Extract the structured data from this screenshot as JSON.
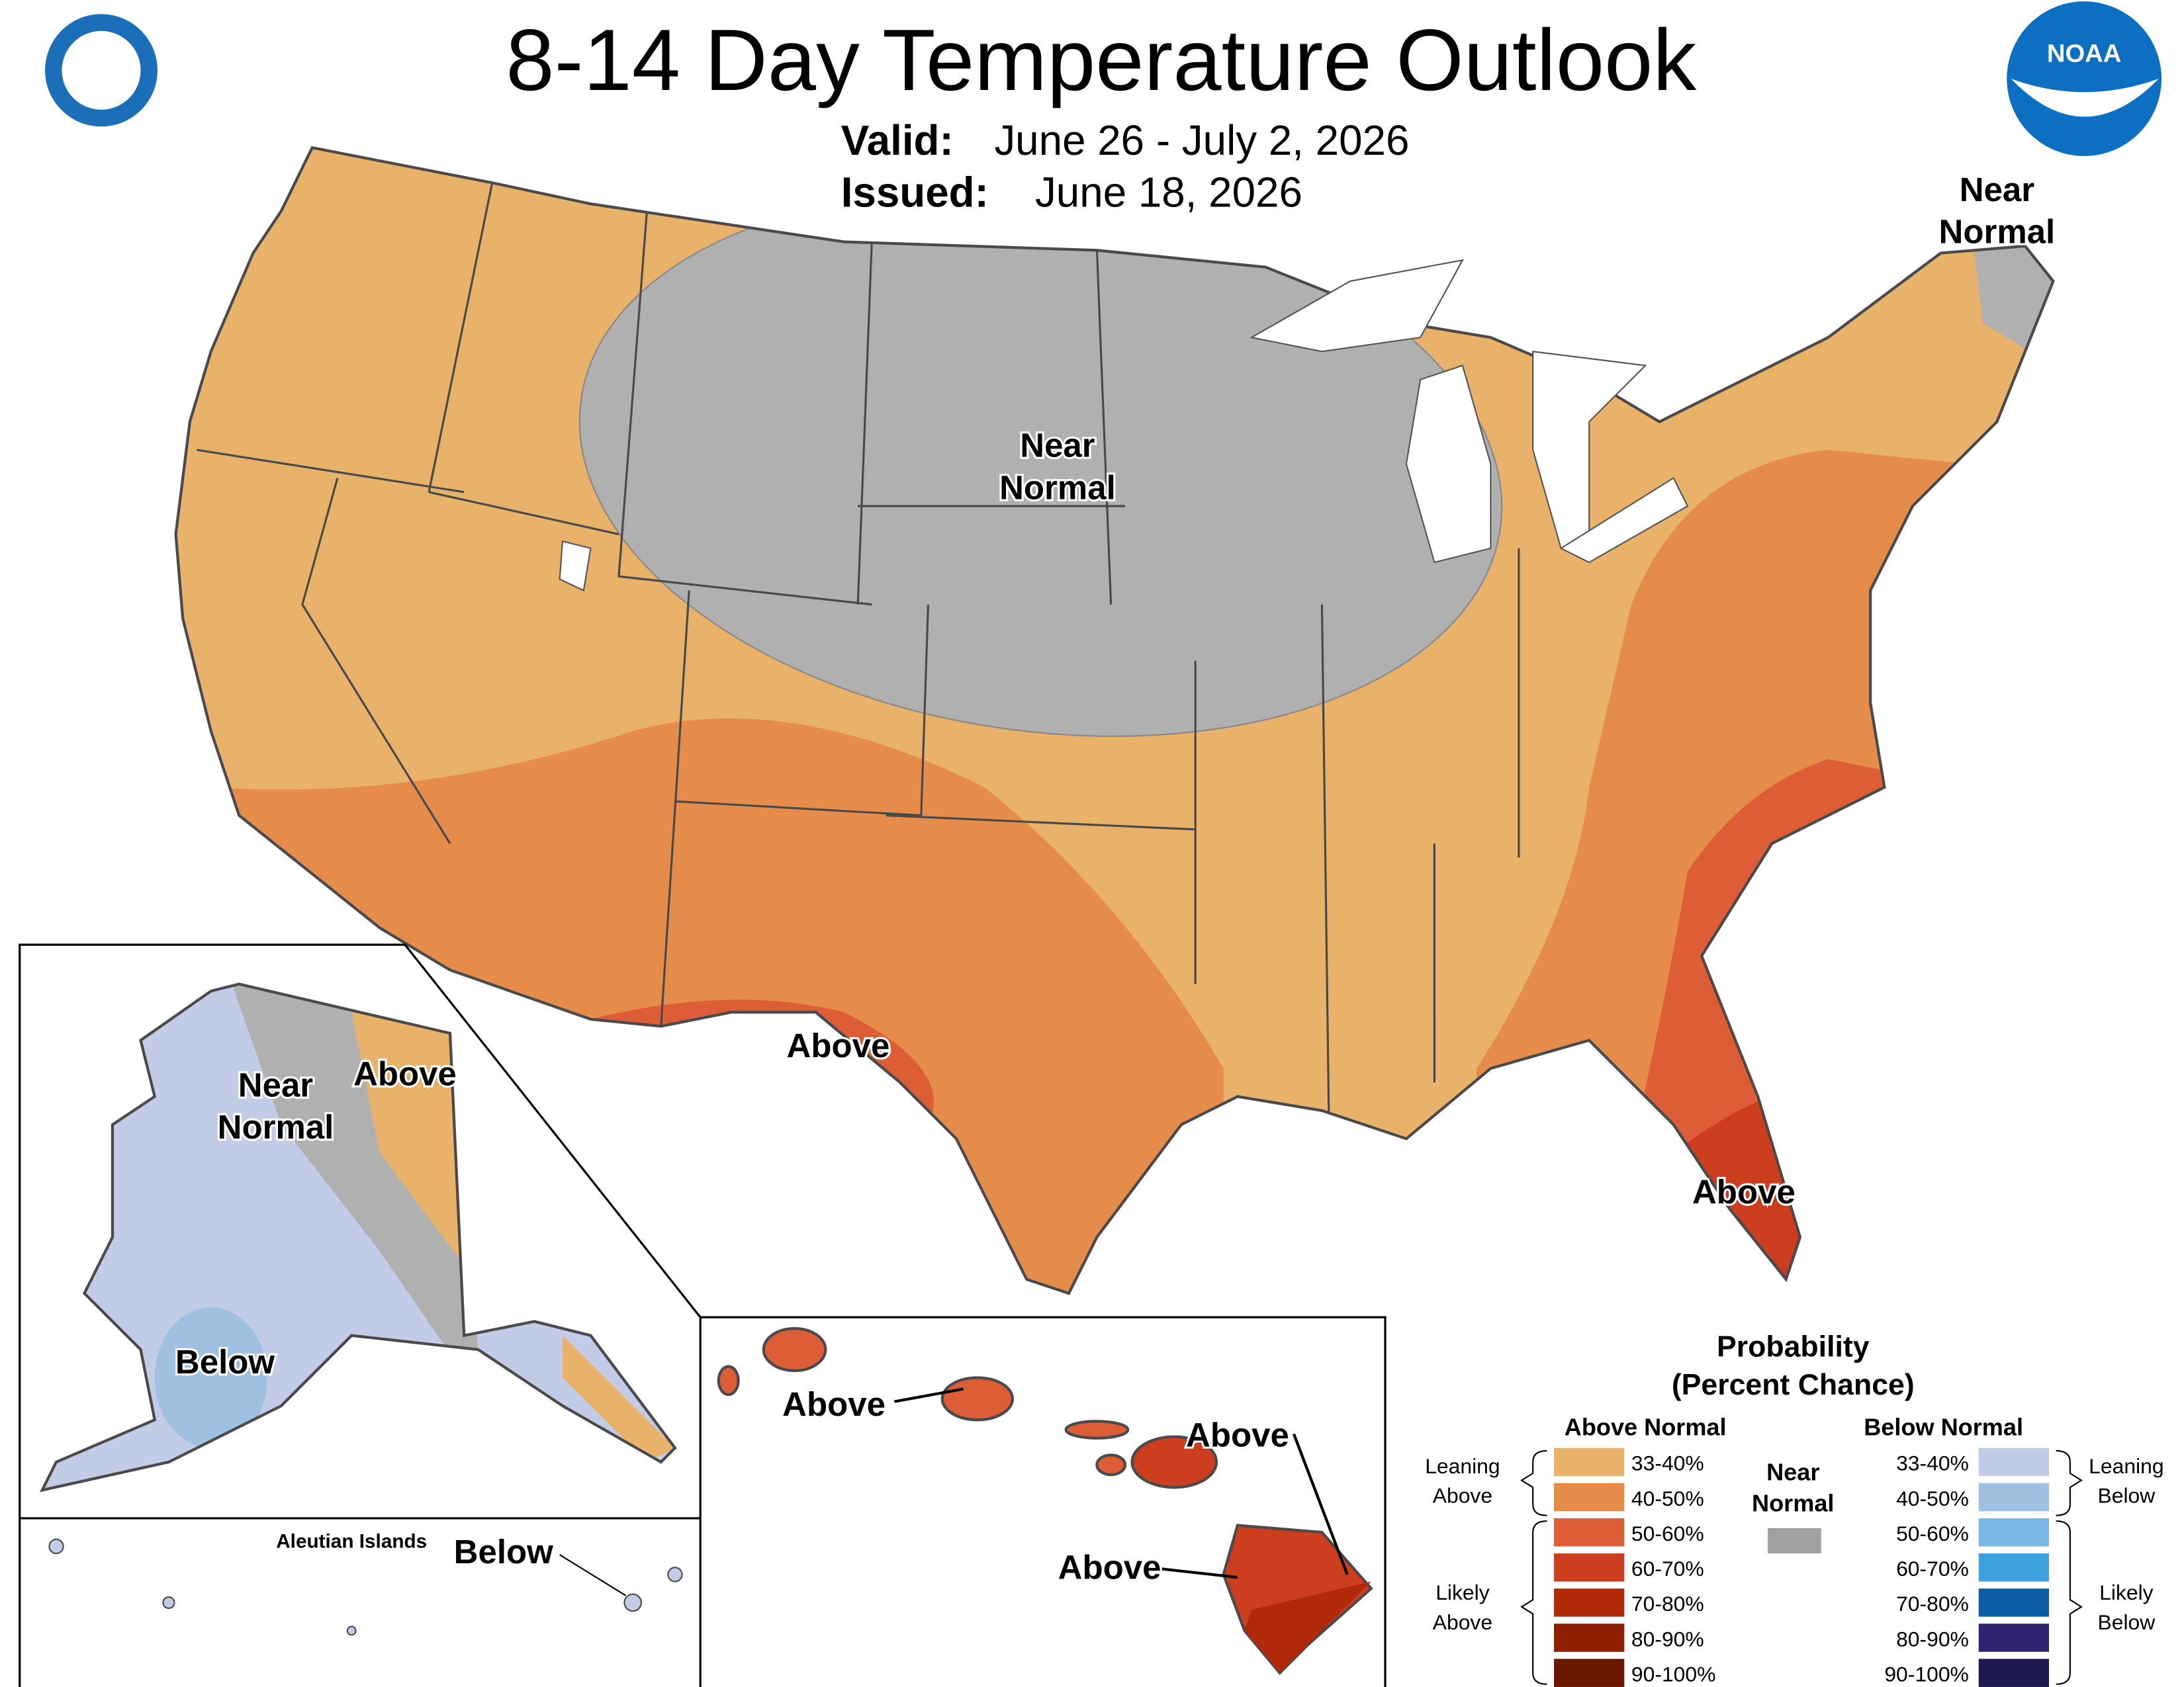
{
  "header": {
    "title": "8-14 Day Temperature Outlook",
    "valid": {
      "label": "Valid:",
      "value": "June 26 - July 2, 2026"
    },
    "issued": {
      "label": "Issued:",
      "value": "June 18, 2026"
    },
    "logo_text": "NOAA"
  },
  "map_labels": {
    "conus": [
      {
        "lines": [
          "Near",
          "Normal"
        ]
      },
      {
        "lines": [
          "Near",
          "Normal"
        ]
      },
      {
        "lines": [
          "Above"
        ]
      },
      {
        "lines": [
          "Above"
        ]
      }
    ],
    "alaska": [
      {
        "lines": [
          "Near",
          "Normal"
        ]
      },
      {
        "lines": [
          "Above"
        ]
      },
      {
        "lines": [
          "Below"
        ]
      }
    ],
    "aleutians": {
      "title": "Aleutian Islands",
      "label": "Below"
    },
    "hawaii": [
      {
        "lines": [
          "Above"
        ]
      },
      {
        "lines": [
          "Above"
        ]
      },
      {
        "lines": [
          "Above"
        ]
      }
    ]
  },
  "legend": {
    "title_lines": [
      "Probability",
      "(Percent Chance)"
    ],
    "above_normal": {
      "heading": "Above Normal",
      "items": [
        {
          "label": "33-40%",
          "color": "#E8B26B"
        },
        {
          "label": "40-50%",
          "color": "#E58C4A"
        },
        {
          "label": "50-60%",
          "color": "#DD5E36"
        },
        {
          "label": "60-70%",
          "color": "#CC3E1E"
        },
        {
          "label": "70-80%",
          "color": "#B02A0A"
        },
        {
          "label": "80-90%",
          "color": "#8E1F02"
        },
        {
          "label": "90-100%",
          "color": "#6A1800"
        }
      ]
    },
    "below_normal": {
      "heading": "Below Normal",
      "items": [
        {
          "label": "33-40%",
          "color": "#C2CCE6"
        },
        {
          "label": "40-50%",
          "color": "#A0C0E2"
        },
        {
          "label": "50-60%",
          "color": "#7BB8E6"
        },
        {
          "label": "60-70%",
          "color": "#3FA0E0"
        },
        {
          "label": "70-80%",
          "color": "#0C5CA8"
        },
        {
          "label": "80-90%",
          "color": "#2E2470"
        },
        {
          "label": "90-100%",
          "color": "#1E1A50"
        }
      ]
    },
    "near_normal": {
      "lines": [
        "Near",
        "Normal"
      ],
      "color": "#A0A0A0"
    },
    "leaning_above": [
      "Leaning",
      "Above"
    ],
    "likely_above": [
      "Likely",
      "Above"
    ],
    "leaning_below": [
      "Leaning",
      "Below"
    ],
    "likely_below": [
      "Likely",
      "Below"
    ]
  }
}
